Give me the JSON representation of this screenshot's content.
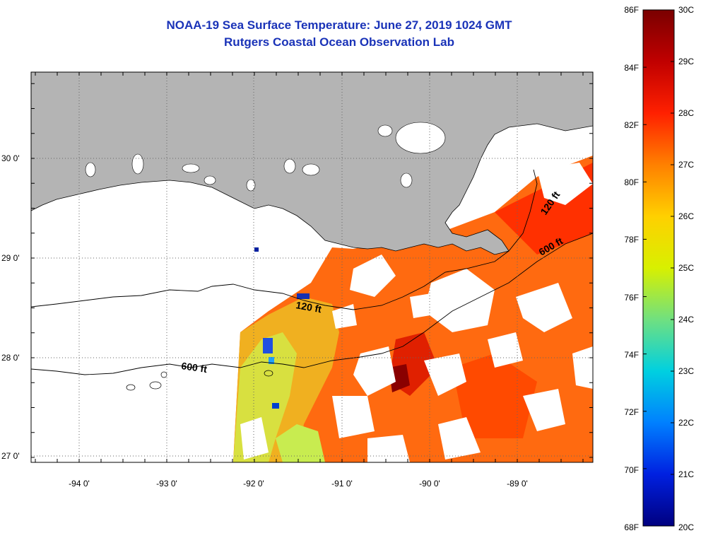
{
  "title": "NOAA-19 Sea Surface Temperature:  June 27, 2019 1024 GMT",
  "subtitle": "Rutgers Coastal Ocean Observation Lab",
  "lon_labels": [
    "-94 0'",
    "-93 0'",
    "-92 0'",
    "-91 0'",
    "-90 0'",
    "-89 0'"
  ],
  "lat_labels": [
    "30 0'",
    "29 0'",
    "28 0'",
    "27 0'"
  ],
  "depth_labels": {
    "upper_west": "120 ft",
    "lower_west": "600 ft",
    "upper_east": "120 ft",
    "lower_east": "600 ft"
  },
  "colorbar": {
    "f_labels": [
      "86F",
      "84F",
      "82F",
      "80F",
      "78F",
      "76F",
      "74F",
      "72F",
      "70F",
      "68F"
    ],
    "c_labels": [
      "30C",
      "29C",
      "28C",
      "27C",
      "26C",
      "25C",
      "24C",
      "23C",
      "22C",
      "21C",
      "20C"
    ],
    "colors": [
      "#7a0000",
      "#c00000",
      "#ff2000",
      "#ff8000",
      "#ffd000",
      "#d8f000",
      "#70e080",
      "#00d0e0",
      "#0080ff",
      "#0020e0",
      "#000080"
    ]
  },
  "colors": {
    "land": "#b4b4b4",
    "cloud": "#ffffff",
    "title": "#1a33b8"
  }
}
